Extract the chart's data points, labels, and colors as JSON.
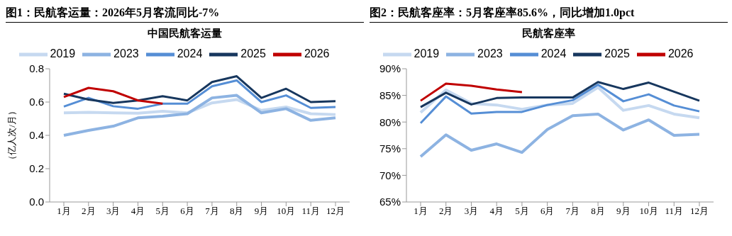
{
  "chart_data": [
    {
      "type": "line",
      "title": "图1：民航客运量：2026年5月客流同比-7%",
      "subtitle": "中国民航客运量",
      "ylabel": "（亿人次/月）",
      "categories": [
        "1月",
        "2月",
        "3月",
        "4月",
        "5月",
        "6月",
        "7月",
        "8月",
        "9月",
        "10月",
        "11月",
        "12月"
      ],
      "series": [
        {
          "name": "2019",
          "color": "#c6d9f0",
          "values": [
            0.535,
            0.538,
            0.535,
            0.533,
            0.545,
            0.535,
            0.595,
            0.615,
            0.55,
            0.57,
            0.53,
            0.525
          ]
        },
        {
          "name": "2023",
          "color": "#8db3e2",
          "values": [
            0.4,
            0.43,
            0.455,
            0.505,
            0.515,
            0.53,
            0.625,
            0.64,
            0.535,
            0.56,
            0.49,
            0.505
          ]
        },
        {
          "name": "2024",
          "color": "#558ed5",
          "values": [
            0.573,
            0.625,
            0.575,
            0.56,
            0.59,
            0.59,
            0.695,
            0.73,
            0.6,
            0.64,
            0.565,
            0.57
          ]
        },
        {
          "name": "2025",
          "color": "#17375e",
          "values": [
            0.65,
            0.615,
            0.595,
            0.61,
            0.635,
            0.61,
            0.72,
            0.755,
            0.625,
            0.68,
            0.6,
            0.605
          ]
        },
        {
          "name": "2026",
          "color": "#c00000",
          "values": [
            0.63,
            0.685,
            0.665,
            0.61,
            0.59,
            null,
            null,
            null,
            null,
            null,
            null,
            null
          ]
        }
      ],
      "ylim": [
        0,
        0.8
      ],
      "yticks": [
        {
          "value": 0,
          "label": "0.0"
        },
        0.2,
        0.4,
        0.6,
        0.8
      ],
      "grid": false,
      "legend": "top",
      "marker": "none",
      "line_style": "solid"
    },
    {
      "type": "line",
      "title": "图2：民航客座率：5月客座率85.6%，同比增加1.0pct",
      "subtitle": "民航客座率",
      "categories": [
        "1月",
        "2月",
        "3月",
        "4月",
        "5月",
        "6月",
        "7月",
        "8月",
        "9月",
        "10月",
        "11月",
        "12月"
      ],
      "series": [
        {
          "name": "2019",
          "color": "#c6d9f0",
          "values": [
            81.8,
            86,
            83.5,
            83.2,
            82.4,
            83.2,
            83.5,
            86.5,
            82.2,
            83.1,
            81.5,
            80.8
          ]
        },
        {
          "name": "2023",
          "color": "#8db3e2",
          "values": [
            73.5,
            77.6,
            74.7,
            75.9,
            74.3,
            78.6,
            81.2,
            81.5,
            78.5,
            80.4,
            77.5,
            77.7
          ]
        },
        {
          "name": "2024",
          "color": "#558ed5",
          "values": [
            79.8,
            84.8,
            81.6,
            81.9,
            81.9,
            83.2,
            84.1,
            87.0,
            83.9,
            85.2,
            83.1,
            82.0
          ]
        },
        {
          "name": "2025",
          "color": "#17375e",
          "values": [
            82.8,
            85.5,
            83.3,
            84.5,
            84.6,
            84.6,
            84.6,
            87.5,
            86.2,
            87.4,
            85.7,
            84.0
          ]
        },
        {
          "name": "2026",
          "color": "#c00000",
          "values": [
            84.0,
            87.2,
            86.8,
            86.1,
            85.6,
            null,
            null,
            null,
            null,
            null,
            null,
            null
          ]
        }
      ],
      "ylim": [
        65,
        90
      ],
      "yticks": [
        {
          "value": 65,
          "label": "65%"
        },
        {
          "value": 70,
          "label": "70%"
        },
        {
          "value": 75,
          "label": "75%"
        },
        {
          "value": 80,
          "label": "80%"
        },
        {
          "value": 85,
          "label": "85%"
        },
        {
          "value": 90,
          "label": "90%"
        }
      ],
      "grid": false,
      "legend": "top",
      "marker": "none",
      "line_style": "solid"
    }
  ]
}
